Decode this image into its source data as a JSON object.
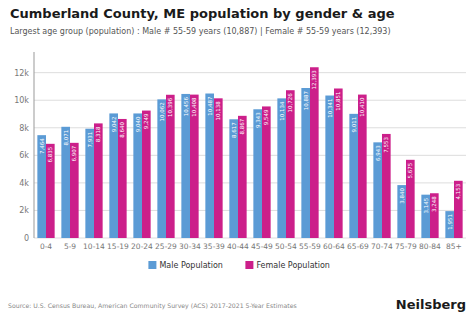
{
  "chart_data": {
    "type": "bar",
    "title": "Cumberland County, ME population by gender & age",
    "subtitle": "Largest age group (population) : Male # 55-59 years (10,887) | Female # 55-59 years (12,393)",
    "source": "Source: U.S. Census Bureau, American Community Survey (ACS) 2017-2021 5-Year Estimates",
    "brand": "Neilsberg",
    "categories": [
      "0-4",
      "5-9",
      "10-14",
      "15-19",
      "20-24",
      "25-29",
      "30-34",
      "35-39",
      "40-44",
      "45-49",
      "50-54",
      "55-59",
      "60-64",
      "65-69",
      "70-74",
      "75-79",
      "80-84",
      "85+"
    ],
    "series": [
      {
        "name": "Male Population",
        "color": "#5b9bd5",
        "values": [
          7464,
          8071,
          7931,
          9042,
          9040,
          10062,
          10456,
          10487,
          8617,
          9343,
          10134,
          10887,
          10341,
          9011,
          6943,
          3840,
          3145,
          1951
        ],
        "value_labels": [
          "7,464",
          "8,071",
          "7,931",
          "9,042",
          "9,040",
          "10,062",
          "10,456",
          "10,487",
          "8,617",
          "9,343",
          "10,134",
          "10,887",
          "10,341",
          "9,011",
          "6,943",
          "3,840",
          "3,145",
          "1,951"
        ]
      },
      {
        "name": "Female Population",
        "color": "#cc1f8a",
        "values": [
          6835,
          6907,
          8318,
          8640,
          9249,
          10396,
          10408,
          10138,
          8867,
          9549,
          10726,
          12393,
          10851,
          10410,
          7553,
          5675,
          3248,
          4153
        ],
        "value_labels": [
          "6,835",
          "6,907",
          "8,318",
          "8,640",
          "9,249",
          "10,396",
          "10,408",
          "10,138",
          "8,867",
          "9,549",
          "10,726",
          "12,393",
          "10,851",
          "10,410",
          "7,553",
          "5,675",
          "3,248",
          "4,153"
        ]
      }
    ],
    "ylim": [
      0,
      13500
    ],
    "yticks": [
      0,
      {
        "value": 2000,
        "label": "2k"
      },
      {
        "value": 4000,
        "label": "4k"
      },
      {
        "value": 6000,
        "label": "6k"
      },
      {
        "value": 8000,
        "label": "8k"
      },
      {
        "value": 10000,
        "label": "10k"
      },
      {
        "value": 12000,
        "label": "12k"
      }
    ],
    "grid": true,
    "legend": "bottom",
    "data_labels": true
  }
}
